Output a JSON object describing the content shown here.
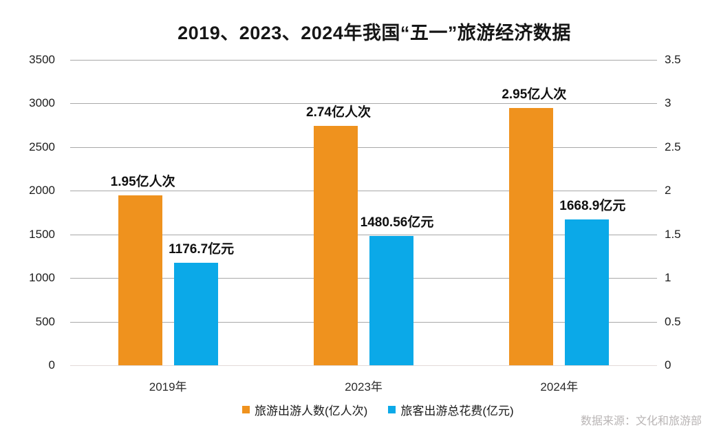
{
  "chart_data": {
    "type": "bar",
    "title": "2019、2023、2024年我国“五一”旅游经济数据",
    "categories": [
      "2019年",
      "2023年",
      "2024年"
    ],
    "series": [
      {
        "name": "旅游出游人数(亿人次)",
        "color": "#EF921E",
        "axis": "right",
        "values": [
          1.95,
          2.74,
          2.95
        ],
        "data_labels": [
          "1.95亿人次",
          "2.74亿人次",
          "2.95亿人次"
        ]
      },
      {
        "name": "旅客出游总花费(亿元)",
        "color": "#0BA9E8",
        "axis": "left",
        "values": [
          1176.7,
          1480.56,
          1668.9
        ],
        "data_labels": [
          "1176.7亿元",
          "1480.56亿元",
          "1668.9亿元"
        ]
      }
    ],
    "left_axis": {
      "ticks": [
        0,
        500,
        1000,
        1500,
        2000,
        2500,
        3000,
        3500
      ],
      "tick_labels": [
        "0",
        "500",
        "1000",
        "1500",
        "2000",
        "2500",
        "3000",
        "3500"
      ],
      "max": 3500
    },
    "right_axis": {
      "ticks": [
        0,
        0.5,
        1,
        1.5,
        2,
        2.5,
        3,
        3.5
      ],
      "tick_labels": [
        "0",
        "0.5",
        "1",
        "1.5",
        "2",
        "2.5",
        "3",
        "3.5"
      ],
      "max": 3.5
    },
    "grid": true,
    "legend_position": "bottom",
    "source": "数据来源：文化和旅游部"
  }
}
